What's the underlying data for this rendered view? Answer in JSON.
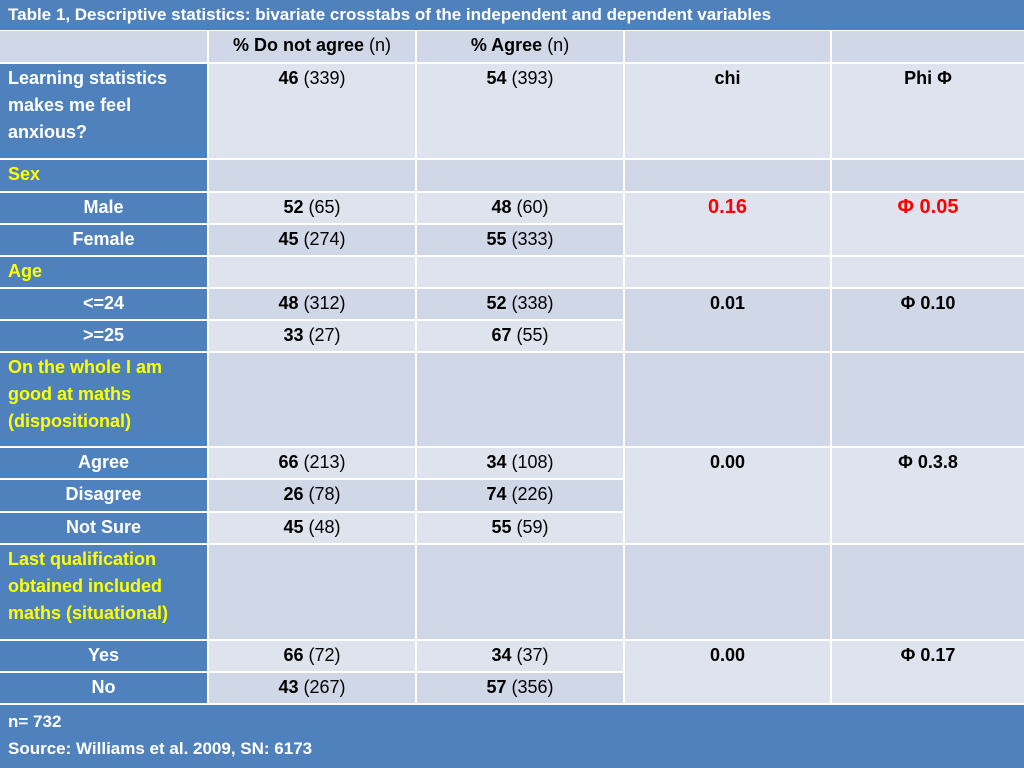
{
  "title": "Table 1, Descriptive statistics: bivariate crosstabs of the independent and dependent variables",
  "header": {
    "col1_bold": "% Do not agree",
    "col1_n": "(n)",
    "col2_bold": "% Agree",
    "col2_n": "(n)"
  },
  "dependent": {
    "label": "Learning statistics makes me feel anxious?",
    "dis_pct": "46",
    "dis_n": "(339)",
    "agr_pct": "54",
    "agr_n": "(393)",
    "chi_head": "chi",
    "phi_head": "Phi Φ"
  },
  "sections": {
    "sex": "Sex",
    "age": "Age",
    "maths": "On the whole I am good at maths (dispositional)",
    "qual": "Last qualification obtained included maths (situational)"
  },
  "rows": {
    "male": {
      "label": "Male",
      "dis_pct": "52",
      "dis_n": "(65)",
      "agr_pct": "48",
      "agr_n": "(60)"
    },
    "female": {
      "label": "Female",
      "dis_pct": "45",
      "dis_n": "(274)",
      "agr_pct": "55",
      "agr_n": "(333)"
    },
    "age1": {
      "label": "<=24",
      "dis_pct": "48",
      "dis_n": "(312)",
      "agr_pct": "52",
      "agr_n": "(338)"
    },
    "age2": {
      "label": ">=25",
      "dis_pct": "33",
      "dis_n": "(27)",
      "agr_pct": "67",
      "agr_n": "(55)"
    },
    "agree": {
      "label": "Agree",
      "dis_pct": "66",
      "dis_n": "(213)",
      "agr_pct": "34",
      "agr_n": "(108)"
    },
    "disagree": {
      "label": "Disagree",
      "dis_pct": "26",
      "dis_n": "(78)",
      "agr_pct": "74",
      "agr_n": "(226)"
    },
    "notsure": {
      "label": "Not Sure",
      "dis_pct": "45",
      "dis_n": "(48)",
      "agr_pct": "55",
      "agr_n": "(59)"
    },
    "yes": {
      "label": "Yes",
      "dis_pct": "66",
      "dis_n": "(72)",
      "agr_pct": "34",
      "agr_n": "(37)"
    },
    "no": {
      "label": "No",
      "dis_pct": "43",
      "dis_n": "(267)",
      "agr_pct": "57",
      "agr_n": "(356)"
    }
  },
  "stats": {
    "sex_chi": "0.16",
    "sex_phi": "Φ 0.05",
    "age_chi": "0.01",
    "age_phi": "Φ 0.10",
    "maths_chi": "0.00",
    "maths_phi": "Φ 0.3.8",
    "qual_chi": "0.00",
    "qual_phi": "Φ 0.17"
  },
  "footer": {
    "n": "n= 732",
    "source": "Source: Williams et al. 2009, SN: 6173"
  },
  "colors": {
    "header_blue": "#4f81bd",
    "light": "#dfe3ee",
    "dark": "#d0d8e8",
    "highlight": "#ff0000",
    "section_text": "#ffff00"
  }
}
